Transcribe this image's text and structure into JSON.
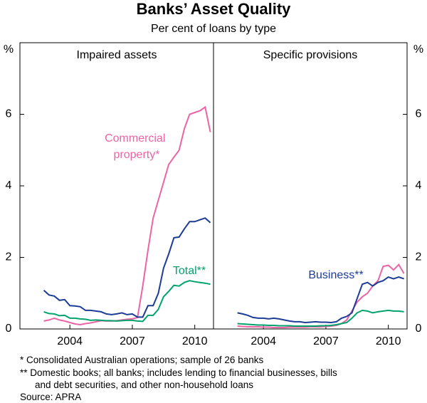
{
  "title": "Banks’ Asset Quality",
  "subtitle": "Per cent of loans by type",
  "notes": [
    "*  Consolidated Australian operations; sample of 26 banks",
    "** Domestic books; all banks; includes lending to financial businesses, bills",
    "and debt securities, and other non-household loans"
  ],
  "source": "Source: APRA",
  "chart_data": [
    {
      "type": "line",
      "title": "Impaired assets",
      "y_unit": "%",
      "xlim": [
        2001.6,
        2010.9
      ],
      "xticks": [
        2004,
        2007,
        2010
      ],
      "ylim": [
        0,
        8
      ],
      "yticks": [
        0,
        2,
        4,
        6
      ],
      "x": [
        2002.75,
        2003,
        2003.25,
        2003.5,
        2003.75,
        2004,
        2004.25,
        2004.5,
        2004.75,
        2005,
        2005.25,
        2005.5,
        2005.75,
        2006,
        2006.25,
        2006.5,
        2006.75,
        2007,
        2007.25,
        2007.5,
        2007.75,
        2008,
        2008.25,
        2008.5,
        2008.75,
        2009,
        2009.25,
        2009.5,
        2009.75,
        2010,
        2010.25,
        2010.5,
        2010.75
      ],
      "series": [
        {
          "name": "Commercial property*",
          "color": "#ec64a6",
          "values": [
            0.22,
            0.25,
            0.3,
            0.25,
            0.22,
            0.18,
            0.14,
            0.12,
            0.15,
            0.17,
            0.2,
            0.23,
            0.22,
            0.22,
            0.23,
            0.25,
            0.27,
            0.28,
            0.32,
            1.2,
            2.2,
            3.1,
            3.6,
            4.1,
            4.6,
            4.8,
            5.0,
            5.6,
            6.0,
            6.05,
            6.1,
            6.2,
            5.5
          ]
        },
        {
          "color": "#1c3c96",
          "values": [
            1.08,
            0.95,
            0.92,
            0.8,
            0.82,
            0.65,
            0.64,
            0.62,
            0.52,
            0.52,
            0.5,
            0.48,
            0.42,
            0.4,
            0.42,
            0.45,
            0.4,
            0.42,
            0.33,
            0.33,
            0.65,
            0.65,
            1.0,
            1.7,
            2.1,
            2.55,
            2.57,
            2.8,
            3.0,
            3.0,
            3.05,
            3.1,
            2.97
          ]
        },
        {
          "name": "Total**",
          "color": "#00a36c",
          "values": [
            0.48,
            0.43,
            0.42,
            0.37,
            0.38,
            0.3,
            0.3,
            0.28,
            0.27,
            0.24,
            0.25,
            0.24,
            0.23,
            0.23,
            0.22,
            0.23,
            0.24,
            0.24,
            0.22,
            0.21,
            0.38,
            0.38,
            0.55,
            0.9,
            1.05,
            1.22,
            1.2,
            1.3,
            1.35,
            1.32,
            1.3,
            1.28,
            1.25
          ]
        }
      ]
    },
    {
      "type": "line",
      "title": "Specific provisions",
      "y_unit": "%",
      "xlim": [
        2001.6,
        2010.9
      ],
      "xticks": [
        2004,
        2007,
        2010
      ],
      "ylim": [
        0,
        8
      ],
      "yticks": [
        0,
        2,
        4,
        6
      ],
      "x": [
        2002.75,
        2003,
        2003.25,
        2003.5,
        2003.75,
        2004,
        2004.25,
        2004.5,
        2004.75,
        2005,
        2005.25,
        2005.5,
        2005.75,
        2006,
        2006.25,
        2006.5,
        2006.75,
        2007,
        2007.25,
        2007.5,
        2007.75,
        2008,
        2008.25,
        2008.5,
        2008.75,
        2009,
        2009.25,
        2009.5,
        2009.75,
        2010,
        2010.25,
        2010.5,
        2010.75
      ],
      "series": [
        {
          "color": "#ec64a6",
          "values": [
            0.08,
            0.07,
            0.06,
            0.06,
            0.06,
            0.05,
            0.05,
            0.04,
            0.04,
            0.04,
            0.05,
            0.05,
            0.05,
            0.05,
            0.06,
            0.06,
            0.06,
            0.07,
            0.08,
            0.1,
            0.15,
            0.25,
            0.5,
            0.75,
            0.9,
            1.0,
            1.2,
            1.35,
            1.75,
            1.78,
            1.65,
            1.8,
            1.55
          ]
        },
        {
          "name": "Business**",
          "color": "#1c3c96",
          "values": [
            0.45,
            0.42,
            0.38,
            0.32,
            0.3,
            0.3,
            0.28,
            0.3,
            0.28,
            0.25,
            0.22,
            0.2,
            0.2,
            0.18,
            0.19,
            0.2,
            0.19,
            0.19,
            0.18,
            0.2,
            0.3,
            0.35,
            0.45,
            0.85,
            1.25,
            1.3,
            1.2,
            1.3,
            1.35,
            1.45,
            1.4,
            1.45,
            1.4
          ]
        },
        {
          "color": "#00a36c",
          "values": [
            0.15,
            0.14,
            0.13,
            0.12,
            0.11,
            0.11,
            0.1,
            0.1,
            0.09,
            0.09,
            0.09,
            0.08,
            0.08,
            0.08,
            0.08,
            0.08,
            0.09,
            0.09,
            0.1,
            0.12,
            0.15,
            0.18,
            0.3,
            0.45,
            0.52,
            0.5,
            0.45,
            0.48,
            0.5,
            0.52,
            0.5,
            0.5,
            0.48
          ]
        }
      ]
    }
  ]
}
